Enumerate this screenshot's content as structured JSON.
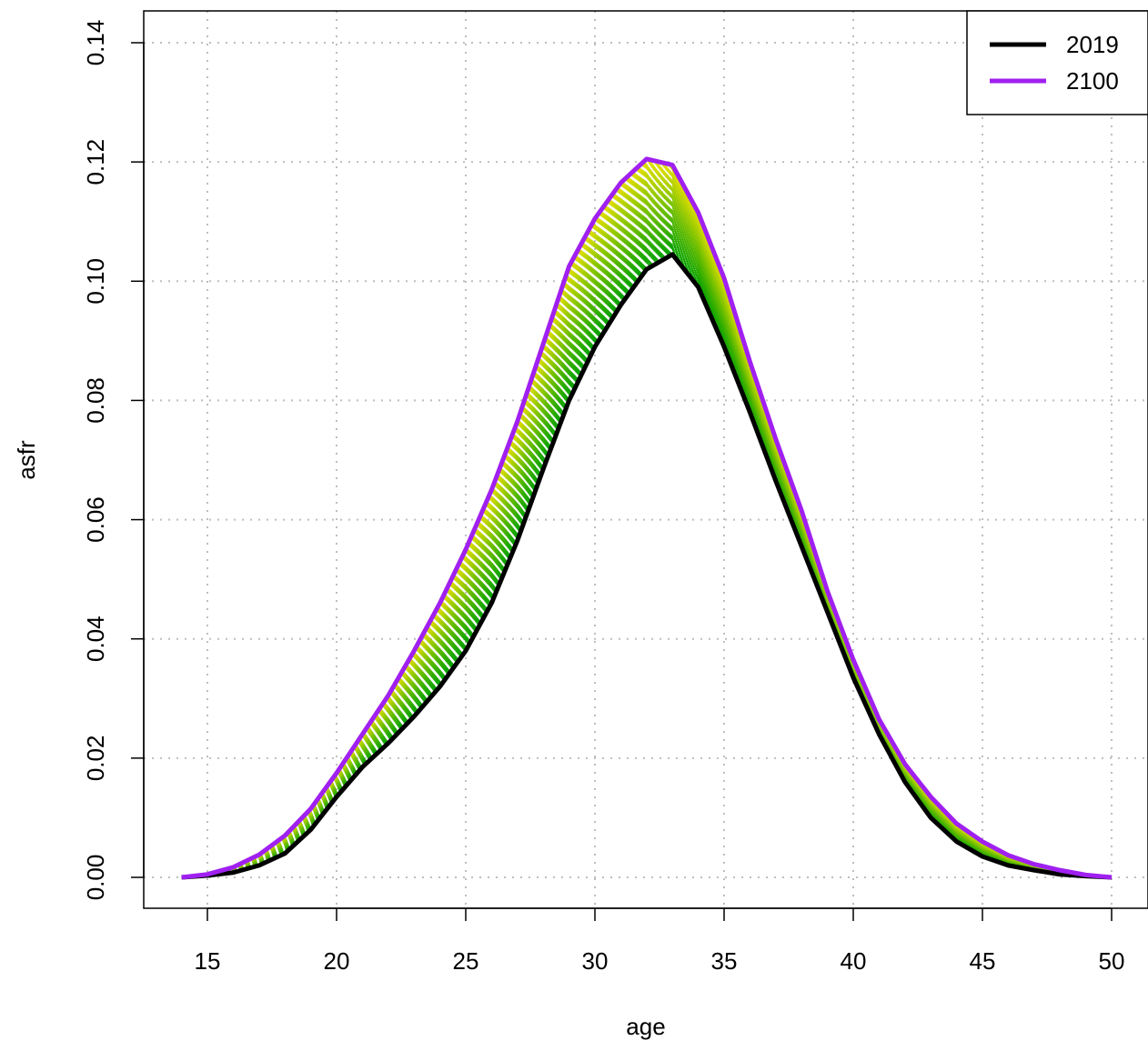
{
  "chart_data": {
    "type": "line",
    "title": "",
    "xlabel": "age",
    "ylabel": "asfr",
    "xlim": [
      14,
      50
    ],
    "ylim": [
      0,
      0.14
    ],
    "x_ticks": [
      15,
      20,
      25,
      30,
      35,
      40,
      45,
      50
    ],
    "y_ticks": [
      0.0,
      0.02,
      0.04,
      0.06,
      0.08,
      0.1,
      0.12,
      0.14
    ],
    "x_tick_labels": [
      "15",
      "20",
      "25",
      "30",
      "35",
      "40",
      "45",
      "50"
    ],
    "y_tick_labels": [
      "0.00",
      "0.02",
      "0.04",
      "0.06",
      "0.08",
      "0.10",
      "0.12",
      "0.14"
    ],
    "grid": true,
    "legend_position": "top-right",
    "ages": [
      14,
      15,
      16,
      17,
      18,
      19,
      20,
      21,
      22,
      23,
      24,
      25,
      26,
      27,
      28,
      29,
      30,
      31,
      32,
      33,
      34,
      35,
      36,
      37,
      38,
      39,
      40,
      41,
      42,
      43,
      44,
      45,
      46,
      47,
      48,
      49,
      50
    ],
    "series": [
      {
        "name": "2019",
        "color": "#000000",
        "values": [
          0.0,
          0.0003,
          0.0008,
          0.002,
          0.004,
          0.008,
          0.0135,
          0.0185,
          0.0225,
          0.027,
          0.032,
          0.038,
          0.046,
          0.0565,
          0.0685,
          0.08,
          0.089,
          0.096,
          0.102,
          0.1045,
          0.099,
          0.089,
          0.078,
          0.0665,
          0.0555,
          0.0445,
          0.0335,
          0.024,
          0.016,
          0.01,
          0.006,
          0.0035,
          0.002,
          0.0012,
          0.0005,
          0.0002,
          0.0
        ]
      },
      {
        "name": "2100",
        "color": "#A020F0",
        "values": [
          0.0,
          0.0005,
          0.0017,
          0.0038,
          0.007,
          0.0115,
          0.0175,
          0.024,
          0.0305,
          0.038,
          0.046,
          0.055,
          0.065,
          0.0765,
          0.0895,
          0.1025,
          0.1105,
          0.1165,
          0.1205,
          0.1195,
          0.1115,
          0.1005,
          0.0865,
          0.0735,
          0.0615,
          0.048,
          0.0365,
          0.0265,
          0.019,
          0.0135,
          0.009,
          0.006,
          0.0037,
          0.0022,
          0.0012,
          0.0004,
          0.0
        ]
      }
    ],
    "intermediate_curves": {
      "count": 80,
      "color_ramp": [
        "#00A000",
        "#E8E000"
      ]
    }
  }
}
